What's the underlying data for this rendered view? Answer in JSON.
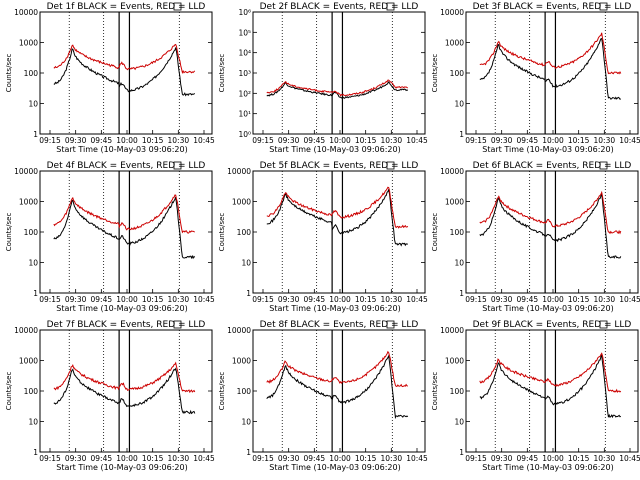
{
  "chart_data": [
    {
      "type": "line",
      "title": "Det 1f BLACK = Events, RED = LLD",
      "xlabel": "Start Time (10-May-03 09:06:20)",
      "ylabel": "Counts/sec",
      "y_scale": "log",
      "ylim": [
        1,
        10000
      ],
      "y_ticks": [
        "1",
        "10",
        "100",
        "1000",
        "10000"
      ],
      "x_ticks": [
        "09:15",
        "09:30",
        "09:45",
        "10:00",
        "10:15",
        "10:30",
        "10:45"
      ],
      "series": [
        {
          "name": "Events",
          "color": "#000000",
          "peak1": 700,
          "dip": 45,
          "mid": 25,
          "peak2": 700,
          "end": 20
        },
        {
          "name": "LLD",
          "color": "#cc0000",
          "peak1": 900,
          "dip": 150,
          "mid": 130,
          "peak2": 900,
          "end": 110
        }
      ]
    },
    {
      "type": "line",
      "title": "Det 2f BLACK = Events, RED = LLD",
      "xlabel": "Start Time (10-May-03 09:06:20)",
      "ylabel": "Counts/sec",
      "y_scale": "log",
      "ylim": [
        1,
        1000000
      ],
      "y_ticks": [
        "10⁰",
        "10¹",
        "10²",
        "10³",
        "10⁴",
        "10⁵",
        "10⁶"
      ],
      "x_ticks": [
        "09:15",
        "09:30",
        "09:45",
        "10:00",
        "10:15",
        "10:30",
        "10:45"
      ],
      "series": [
        {
          "name": "Events",
          "color": "#000000",
          "peak1": 350,
          "dip": 80,
          "mid": 60,
          "peak2": 350,
          "end": 150
        },
        {
          "name": "LLD",
          "color": "#cc0000",
          "peak1": 400,
          "dip": 110,
          "mid": 80,
          "peak2": 450,
          "end": 200
        }
      ]
    },
    {
      "type": "line",
      "title": "Det 3f BLACK = Events, RED = LLD",
      "xlabel": "Start Time (10-May-03 09:06:20)",
      "ylabel": "Counts/sec",
      "y_scale": "log",
      "ylim": [
        1,
        10000
      ],
      "y_ticks": [
        "1",
        "10",
        "100",
        "1000",
        "10000"
      ],
      "x_ticks": [
        "09:15",
        "09:30",
        "09:45",
        "10:00",
        "10:15",
        "10:30",
        "10:45"
      ],
      "series": [
        {
          "name": "Events",
          "color": "#000000",
          "peak1": 1000,
          "dip": 60,
          "mid": 35,
          "peak2": 1500,
          "end": 15
        },
        {
          "name": "LLD",
          "color": "#cc0000",
          "peak1": 1200,
          "dip": 180,
          "mid": 150,
          "peak2": 2000,
          "end": 100
        }
      ]
    },
    {
      "type": "line",
      "title": "Det 4f BLACK = Events, RED = LLD",
      "xlabel": "Start Time (10-May-03 09:06:20)",
      "ylabel": "Counts/sec",
      "y_scale": "log",
      "ylim": [
        1,
        10000
      ],
      "y_ticks": [
        "1",
        "10",
        "100",
        "1000",
        "10000"
      ],
      "x_ticks": [
        "09:15",
        "09:30",
        "09:45",
        "10:00",
        "10:15",
        "10:30",
        "10:45"
      ],
      "series": [
        {
          "name": "Events",
          "color": "#000000",
          "peak1": 1300,
          "dip": 60,
          "mid": 40,
          "peak2": 1500,
          "end": 15
        },
        {
          "name": "LLD",
          "color": "#cc0000",
          "peak1": 1500,
          "dip": 180,
          "mid": 120,
          "peak2": 1800,
          "end": 100
        }
      ]
    },
    {
      "type": "line",
      "title": "Det 5f BLACK = Events, RED = LLD",
      "xlabel": "Start Time (10-May-03 09:06:20)",
      "ylabel": "Counts/sec",
      "y_scale": "log",
      "ylim": [
        1,
        10000
      ],
      "y_ticks": [
        "1",
        "10",
        "100",
        "1000",
        "10000"
      ],
      "x_ticks": [
        "09:15",
        "09:30",
        "09:45",
        "10:00",
        "10:15",
        "10:30",
        "10:45"
      ],
      "series": [
        {
          "name": "Events",
          "color": "#000000",
          "peak1": 2000,
          "dip": 200,
          "mid": 90,
          "peak2": 2500,
          "end": 40
        },
        {
          "name": "LLD",
          "color": "#cc0000",
          "peak1": 2200,
          "dip": 350,
          "mid": 300,
          "peak2": 3000,
          "end": 150
        }
      ]
    },
    {
      "type": "line",
      "title": "Det 6f BLACK = Events, RED = LLD",
      "xlabel": "Start Time (10-May-03 09:06:20)",
      "ylabel": "Counts/sec",
      "y_scale": "log",
      "ylim": [
        1,
        10000
      ],
      "y_ticks": [
        "1",
        "10",
        "100",
        "1000",
        "10000"
      ],
      "x_ticks": [
        "09:15",
        "09:30",
        "09:45",
        "10:00",
        "10:15",
        "10:30",
        "10:45"
      ],
      "series": [
        {
          "name": "Events",
          "color": "#000000",
          "peak1": 1500,
          "dip": 80,
          "mid": 50,
          "peak2": 1700,
          "end": 15
        },
        {
          "name": "LLD",
          "color": "#cc0000",
          "peak1": 1700,
          "dip": 200,
          "mid": 150,
          "peak2": 2000,
          "end": 100
        }
      ]
    },
    {
      "type": "line",
      "title": "Det 7f BLACK = Events, RED = LLD",
      "xlabel": "Start Time (10-May-03 09:06:20)",
      "ylabel": "Counts/sec",
      "y_scale": "log",
      "ylim": [
        1,
        10000
      ],
      "y_ticks": [
        "1",
        "10",
        "100",
        "1000",
        "10000"
      ],
      "x_ticks": [
        "09:15",
        "09:30",
        "09:45",
        "10:00",
        "10:15",
        "10:30",
        "10:45"
      ],
      "series": [
        {
          "name": "Events",
          "color": "#000000",
          "peak1": 600,
          "dip": 40,
          "mid": 30,
          "peak2": 600,
          "end": 20
        },
        {
          "name": "LLD",
          "color": "#cc0000",
          "peak1": 800,
          "dip": 120,
          "mid": 110,
          "peak2": 800,
          "end": 100
        }
      ]
    },
    {
      "type": "line",
      "title": "Det 8f BLACK = Events, RED = LLD",
      "xlabel": "Start Time (10-May-03 09:06:20)",
      "ylabel": "Counts/sec",
      "y_scale": "log",
      "ylim": [
        1,
        10000
      ],
      "y_ticks": [
        "1",
        "10",
        "100",
        "1000",
        "10000"
      ],
      "x_ticks": [
        "09:15",
        "09:30",
        "09:45",
        "10:00",
        "10:15",
        "10:30",
        "10:45"
      ],
      "series": [
        {
          "name": "Events",
          "color": "#000000",
          "peak1": 800,
          "dip": 60,
          "mid": 40,
          "peak2": 1500,
          "end": 15
        },
        {
          "name": "LLD",
          "color": "#cc0000",
          "peak1": 1000,
          "dip": 200,
          "mid": 180,
          "peak2": 2000,
          "end": 150
        }
      ]
    },
    {
      "type": "line",
      "title": "Det 9f BLACK = Events, RED = LLD",
      "xlabel": "Start Time (10-May-03 09:06:20)",
      "ylabel": "Counts/sec",
      "y_scale": "log",
      "ylim": [
        1,
        10000
      ],
      "y_ticks": [
        "1",
        "10",
        "100",
        "1000",
        "10000"
      ],
      "x_ticks": [
        "09:15",
        "09:30",
        "09:45",
        "10:00",
        "10:15",
        "10:30",
        "10:45"
      ],
      "series": [
        {
          "name": "Events",
          "color": "#000000",
          "peak1": 1000,
          "dip": 60,
          "mid": 35,
          "peak2": 1500,
          "end": 15
        },
        {
          "name": "LLD",
          "color": "#cc0000",
          "peak1": 1200,
          "dip": 200,
          "mid": 150,
          "peak2": 1800,
          "end": 100
        }
      ]
    }
  ]
}
